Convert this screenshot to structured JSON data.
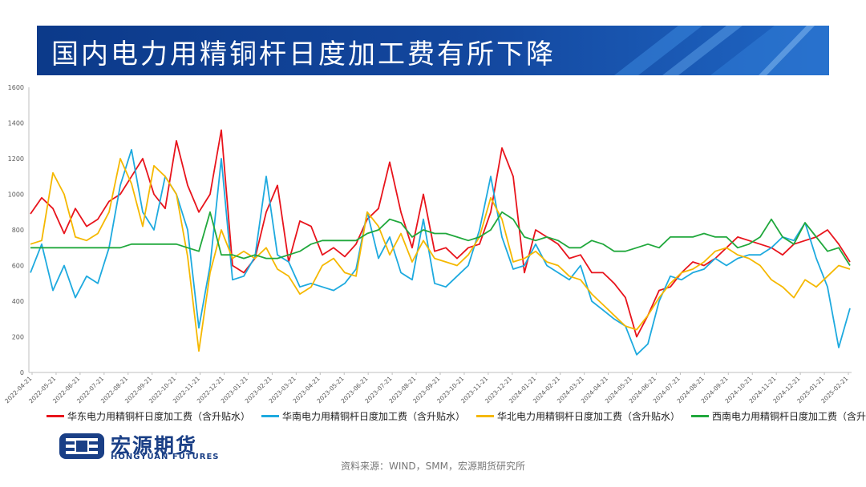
{
  "banner": {
    "title": "国内电力用精铜杆日度加工费有所下降"
  },
  "logo": {
    "name_cn": "宏源期货",
    "name_en": "HONGYUAN FUTURES"
  },
  "source": {
    "text": "资料来源：WIND，SMM，宏源期货研究所"
  },
  "colors": {
    "banner_dark": "#0c3a8a",
    "banner_light": "#2b7ad6",
    "east": "#e8141c",
    "south": "#1eaadf",
    "north": "#f5b800",
    "southwest": "#20a83c"
  },
  "chart_data": {
    "type": "line",
    "ylim": [
      0,
      1600
    ],
    "yticks": [
      "0",
      "200",
      "400",
      "600",
      "800",
      "1000",
      "1200",
      "1400",
      "1600"
    ],
    "xticks": [
      "2022-04-21",
      "2022-05-21",
      "2022-06-21",
      "2022-07-21",
      "2022-08-21",
      "2022-09-21",
      "2022-10-21",
      "2022-11-21",
      "2022-12-21",
      "2023-01-21",
      "2023-02-21",
      "2023-03-21",
      "2023-04-21",
      "2023-05-21",
      "2023-06-21",
      "2023-07-21",
      "2023-08-21",
      "2023-09-21",
      "2023-10-21",
      "2023-11-21",
      "2023-12-21",
      "2024-01-21",
      "2024-02-21",
      "2024-03-21",
      "2024-04-21",
      "2024-05-21",
      "2024-06-21",
      "2024-07-21",
      "2024-08-21",
      "2024-09-21",
      "2024-10-21",
      "2024-11-21",
      "2024-12-21",
      "2025-01-21",
      "2025-02-21"
    ],
    "series": [
      {
        "name": "华东电力用精铜杆日度加工费（含升贴水）",
        "color": "#e8141c",
        "values": [
          890,
          980,
          920,
          780,
          920,
          820,
          860,
          960,
          1000,
          1100,
          1200,
          1000,
          920,
          1300,
          1050,
          900,
          1000,
          1360,
          600,
          560,
          640,
          900,
          1050,
          620,
          850,
          820,
          660,
          700,
          650,
          720,
          860,
          920,
          1180,
          900,
          700,
          1000,
          680,
          700,
          640,
          700,
          720,
          900,
          1260,
          1100,
          560,
          800,
          760,
          720,
          640,
          660,
          560,
          560,
          500,
          420,
          200,
          320,
          460,
          480,
          560,
          620,
          600,
          640,
          700,
          760,
          740,
          720,
          700,
          660,
          720,
          740,
          760,
          800,
          720,
          620
        ]
      },
      {
        "name": "华南电力用精铜杆日度加工费（含升贴水）",
        "color": "#1eaadf",
        "values": [
          560,
          720,
          460,
          600,
          420,
          540,
          500,
          700,
          1050,
          1250,
          900,
          800,
          1100,
          1000,
          800,
          250,
          600,
          1200,
          520,
          540,
          650,
          1100,
          660,
          620,
          480,
          500,
          480,
          460,
          500,
          580,
          900,
          640,
          760,
          560,
          520,
          860,
          500,
          480,
          540,
          600,
          800,
          1100,
          760,
          580,
          600,
          720,
          600,
          560,
          520,
          600,
          400,
          350,
          300,
          260,
          100,
          160,
          400,
          540,
          520,
          560,
          580,
          640,
          600,
          640,
          660,
          660,
          700,
          760,
          740,
          840,
          640,
          480,
          140,
          360
        ]
      },
      {
        "name": "华北电力用精铜杆日度加工费（含升贴水）",
        "color": "#f5b800",
        "values": [
          720,
          740,
          1120,
          1000,
          760,
          740,
          780,
          900,
          1200,
          1060,
          820,
          1160,
          1100,
          1000,
          650,
          120,
          560,
          800,
          640,
          680,
          640,
          700,
          580,
          540,
          440,
          480,
          600,
          640,
          560,
          540,
          900,
          820,
          660,
          780,
          620,
          740,
          640,
          620,
          600,
          660,
          760,
          980,
          860,
          620,
          640,
          680,
          620,
          600,
          540,
          520,
          440,
          380,
          320,
          260,
          240,
          320,
          420,
          500,
          560,
          580,
          620,
          680,
          700,
          660,
          640,
          600,
          520,
          480,
          420,
          520,
          480,
          540,
          600,
          580
        ]
      },
      {
        "name": "西南电力用精铜杆日度加工费（含升贴水）",
        "color": "#20a83c",
        "values": [
          700,
          700,
          700,
          700,
          700,
          700,
          700,
          700,
          700,
          720,
          720,
          720,
          720,
          720,
          700,
          680,
          900,
          660,
          660,
          640,
          660,
          640,
          640,
          660,
          680,
          720,
          740,
          740,
          740,
          740,
          780,
          800,
          860,
          840,
          760,
          800,
          780,
          780,
          760,
          740,
          760,
          800,
          900,
          860,
          760,
          740,
          760,
          740,
          700,
          700,
          740,
          720,
          680,
          680,
          700,
          720,
          700,
          760,
          760,
          760,
          780,
          760,
          760,
          700,
          720,
          760,
          860,
          760,
          720,
          840,
          760,
          680,
          700,
          600
        ]
      }
    ]
  }
}
